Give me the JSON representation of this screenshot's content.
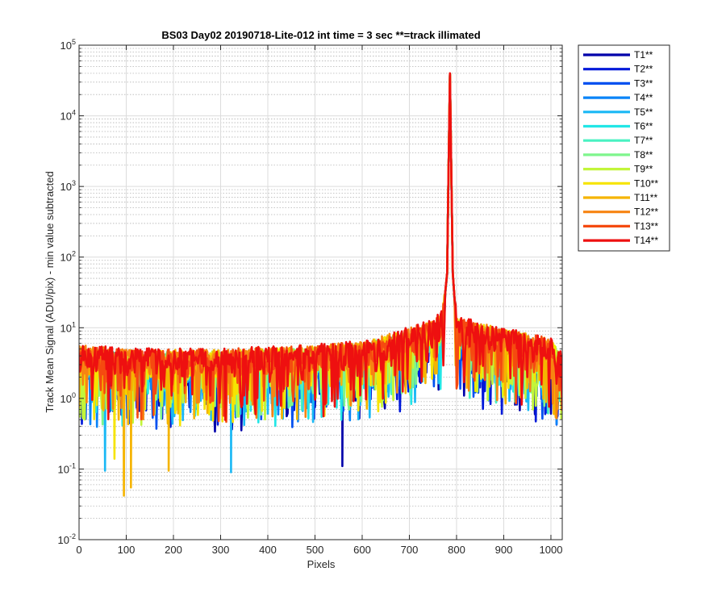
{
  "chart_data": {
    "type": "line",
    "title": "BS03 Day02 20190718-Lite-012 int time = 3 sec   **=track illimated",
    "xlabel": "Pixels",
    "ylabel": "Track Mean Signal (ADU/pix) - min value subtracted",
    "xlim": [
      0,
      1024
    ],
    "ylim": [
      0.01,
      100000
    ],
    "yscale": "log",
    "xticks": [
      0,
      100,
      200,
      300,
      400,
      500,
      600,
      700,
      800,
      900,
      1000
    ],
    "yticks": [
      {
        "value": 0.01,
        "base": "10",
        "exp": "-2"
      },
      {
        "value": 0.1,
        "base": "10",
        "exp": "-1"
      },
      {
        "value": 1,
        "base": "10",
        "exp": "0"
      },
      {
        "value": 10,
        "base": "10",
        "exp": "1"
      },
      {
        "value": 100,
        "base": "10",
        "exp": "2"
      },
      {
        "value": 1000,
        "base": "10",
        "exp": "3"
      },
      {
        "value": 10000,
        "base": "10",
        "exp": "4"
      },
      {
        "value": 100000,
        "base": "10",
        "exp": "5"
      }
    ],
    "grid": true,
    "minor_grid": true,
    "legend_position": "outside-right-top",
    "peak_pixel": 786,
    "peak_value": 40000,
    "profile": [
      {
        "x": 0,
        "y": 4
      },
      {
        "x": 100,
        "y": 3.5
      },
      {
        "x": 200,
        "y": 3.5
      },
      {
        "x": 300,
        "y": 3.5
      },
      {
        "x": 400,
        "y": 3.7
      },
      {
        "x": 500,
        "y": 4
      },
      {
        "x": 600,
        "y": 4.5
      },
      {
        "x": 700,
        "y": 7
      },
      {
        "x": 750,
        "y": 9
      },
      {
        "x": 770,
        "y": 12
      },
      {
        "x": 780,
        "y": 60
      },
      {
        "x": 786,
        "y": 40000
      },
      {
        "x": 792,
        "y": 60
      },
      {
        "x": 800,
        "y": 10
      },
      {
        "x": 900,
        "y": 7
      },
      {
        "x": 1000,
        "y": 5
      },
      {
        "x": 1024,
        "y": 3
      }
    ],
    "dips": [
      {
        "series": "T1**",
        "x": 558,
        "y": 0.11
      },
      {
        "series": "T5**",
        "x": 55,
        "y": 0.095
      },
      {
        "series": "T5**",
        "x": 322,
        "y": 0.09
      },
      {
        "series": "T11**",
        "x": 95,
        "y": 0.042
      },
      {
        "series": "T11**",
        "x": 110,
        "y": 0.055
      },
      {
        "series": "T11**",
        "x": 190,
        "y": 0.095
      },
      {
        "series": "T10**",
        "x": 75,
        "y": 0.14
      }
    ],
    "series": [
      {
        "name": "T1**",
        "color": "#0000AA"
      },
      {
        "name": "T2**",
        "color": "#0019D9"
      },
      {
        "name": "T3**",
        "color": "#0050F0"
      },
      {
        "name": "T4**",
        "color": "#0A84F8"
      },
      {
        "name": "T5**",
        "color": "#1AB8F5"
      },
      {
        "name": "T6**",
        "color": "#22E6E6"
      },
      {
        "name": "T7**",
        "color": "#4AF2C2"
      },
      {
        "name": "T8**",
        "color": "#7EF58C"
      },
      {
        "name": "T9**",
        "color": "#C2F53A"
      },
      {
        "name": "T10**",
        "color": "#F6E400"
      },
      {
        "name": "T11**",
        "color": "#F5B400"
      },
      {
        "name": "T12**",
        "color": "#F78412"
      },
      {
        "name": "T13**",
        "color": "#F54A10"
      },
      {
        "name": "T14**",
        "color": "#EE1010"
      }
    ]
  }
}
